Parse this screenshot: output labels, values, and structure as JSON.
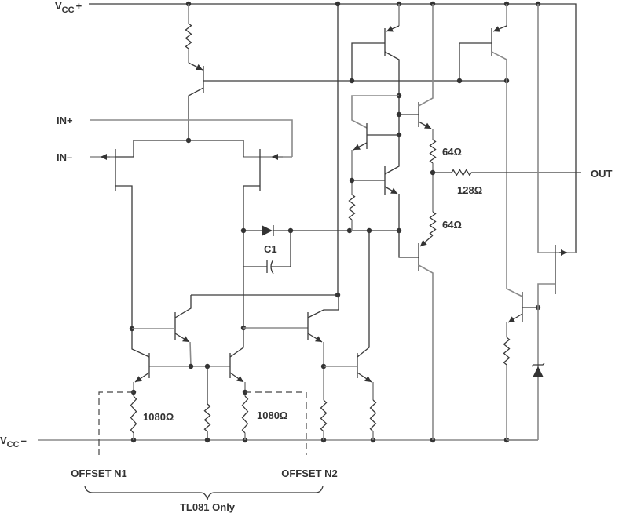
{
  "labels": {
    "vcc_plus": {
      "main": "V",
      "sub": "CC",
      "sign": "+"
    },
    "vcc_minus": {
      "main": "V",
      "sub": "CC",
      "sign": "–"
    },
    "in_plus": "IN+",
    "in_minus": "IN–",
    "out": "OUT",
    "c1": "C1",
    "r_64_top": "64Ω",
    "r_64_bottom": "64Ω",
    "r_128": "128Ω",
    "r_1080_left": "1080Ω",
    "r_1080_right": "1080Ω",
    "offset_n1": "OFFSET N1",
    "offset_n2": "OFFSET N2",
    "tl081_only": "TL081 Only"
  }
}
